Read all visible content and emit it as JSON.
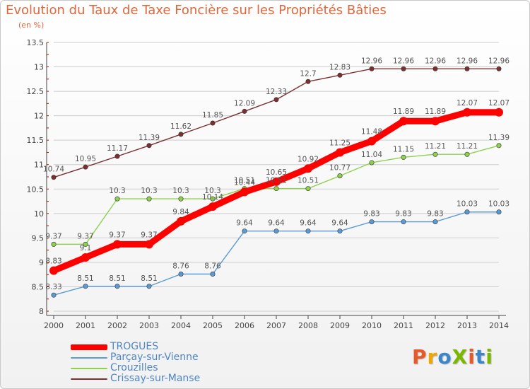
{
  "title": "Evolution du Taux de Taxe Foncière sur les Propriétés Bâties",
  "subtitle": "(en %)",
  "colors": {
    "title": "#e0673c",
    "axis": "#444444",
    "grid": "#cccccc",
    "tick_mark": "#cc0000",
    "legend_text": "#4f86c6"
  },
  "chart_data": {
    "type": "line",
    "x": [
      "2000",
      "2001",
      "2002",
      "2003",
      "2004",
      "2005",
      "2006",
      "2007",
      "2008",
      "2009",
      "2010",
      "2011",
      "2012",
      "2013",
      "2014"
    ],
    "ylim": [
      8,
      13.5
    ],
    "yticks": [
      "8",
      "8.5",
      "9",
      "9.5",
      "10",
      "10.5",
      "11",
      "11.5",
      "12",
      "12.5",
      "13",
      "13.5"
    ],
    "grid": "horizontal",
    "legend": "bottom-left",
    "series": [
      {
        "name": "TROGUES",
        "color": "#ff0000",
        "values": [
          8.83,
          9.1,
          9.37,
          9.37,
          9.84,
          10.14,
          10.44,
          10.65,
          10.92,
          11.25,
          11.48,
          11.89,
          11.89,
          12.07,
          12.07
        ],
        "labels": [
          "8.83",
          "9.1",
          "9.37",
          "9.37",
          "9.84",
          "10.14",
          "10.44",
          "10.65",
          "10.92",
          "11.25",
          "11.48",
          "11.89",
          "11.89",
          "12.07",
          "12.07"
        ]
      },
      {
        "name": "Parçay-sur-Vienne",
        "color": "#5b9bd5",
        "values": [
          8.33,
          8.51,
          8.51,
          8.51,
          8.76,
          8.76,
          9.64,
          9.64,
          9.64,
          9.64,
          9.83,
          9.83,
          9.83,
          10.03,
          10.03
        ],
        "labels": [
          "8.33",
          "8.51",
          "8.51",
          "8.51",
          "8.76",
          "8.76",
          "9.64",
          "9.64",
          "9.64",
          "9.64",
          "9.83",
          "9.83",
          "9.83",
          "10.03",
          "10.03"
        ]
      },
      {
        "name": "Crouzilles",
        "color": "#8fd14f",
        "values": [
          9.37,
          9.37,
          10.3,
          10.3,
          10.3,
          10.3,
          10.51,
          10.51,
          10.51,
          10.77,
          11.04,
          11.15,
          11.21,
          11.21,
          11.39
        ],
        "labels": [
          "9.37",
          "9.37",
          "10.3",
          "10.3",
          "10.3",
          "10.3",
          "10.51",
          "10.51",
          "10.51",
          "10.77",
          "11.04",
          "11.15",
          "11.21",
          "11.21",
          "11.39"
        ]
      },
      {
        "name": "Crissay-sur-Manse",
        "color": "#7b2f2f",
        "values": [
          10.74,
          10.95,
          11.17,
          11.39,
          11.62,
          11.85,
          12.09,
          12.33,
          12.7,
          12.83,
          12.96,
          12.96,
          12.96,
          12.96,
          12.96
        ],
        "labels": [
          "10.74",
          "10.95",
          "11.17",
          "11.39",
          "11.62",
          "11.85",
          "12.09",
          "12.33",
          "12.7",
          "12.83",
          "12.96",
          "12.96",
          "12.96",
          "12.96",
          "12.96"
        ]
      }
    ]
  },
  "logo": {
    "text": "ProXiti",
    "letter_colors": [
      "#e8592a",
      "#f0a500",
      "#3a86c8",
      "#7ab800",
      "#e8592a",
      "#3a86c8",
      "#7ab800"
    ]
  }
}
